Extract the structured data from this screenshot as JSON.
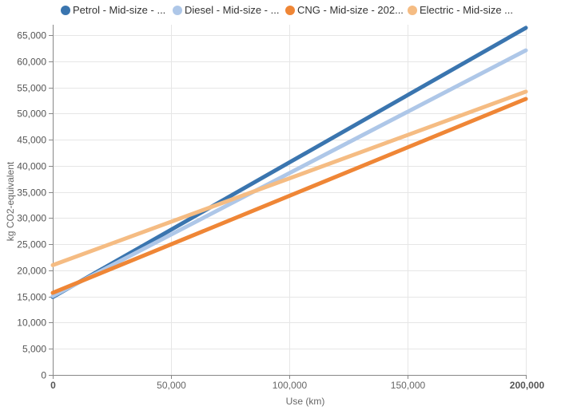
{
  "chart_data": {
    "type": "line",
    "xlabel": "Use (km)",
    "ylabel": "kg CO2-equivalent",
    "xlim": [
      0,
      200000
    ],
    "ylim": [
      0,
      67000
    ],
    "x_ticks": [
      0,
      50000,
      100000,
      150000,
      200000
    ],
    "x_tick_labels": [
      "0",
      "50,000",
      "100,000",
      "150,000",
      "200,000"
    ],
    "y_ticks": [
      0,
      5000,
      10000,
      15000,
      20000,
      25000,
      30000,
      35000,
      40000,
      45000,
      50000,
      55000,
      60000,
      65000
    ],
    "y_tick_labels": [
      "0",
      "5,000",
      "10,000",
      "15,000",
      "20,000",
      "25,000",
      "30,000",
      "35,000",
      "40,000",
      "45,000",
      "50,000",
      "55,000",
      "60,000",
      "65,000"
    ],
    "grid": true,
    "legend_position": "top",
    "series": [
      {
        "name": "Petrol - Mid-size - ...",
        "color": "#3a75af",
        "x": [
          0,
          200000
        ],
        "y": [
          14900,
          66400
        ]
      },
      {
        "name": "Diesel - Mid-size - ...",
        "color": "#aec7e8",
        "x": [
          0,
          200000
        ],
        "y": [
          15100,
          62100
        ]
      },
      {
        "name": "CNG - Mid-size - 202...",
        "color": "#ef8636",
        "x": [
          0,
          200000
        ],
        "y": [
          15700,
          52800
        ]
      },
      {
        "name": "Electric - Mid-size ...",
        "color": "#f5bc83",
        "x": [
          0,
          200000
        ],
        "y": [
          21000,
          54200
        ]
      }
    ]
  }
}
